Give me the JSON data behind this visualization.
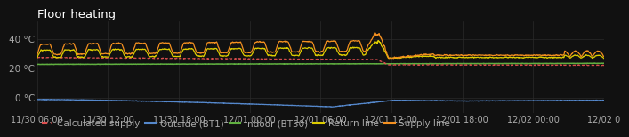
{
  "title": "Floor heating",
  "background_color": "#111111",
  "text_color": "#aaaaaa",
  "grid_color": "#2a2a2a",
  "ylim": [
    -10,
    52
  ],
  "yticks": [
    0,
    20,
    40
  ],
  "ytick_labels": [
    "0 °C",
    "20 °C",
    "40 °C"
  ],
  "x_tick_labels": [
    "11/30 06:00",
    "11/30 12:00",
    "11/30 18:00",
    "12/01 00:00",
    "12/01 06:00",
    "12/01 12:00",
    "12/01 18:00",
    "12/02 00:00",
    "12/02 0"
  ],
  "colors": {
    "calc_supply": "#e05050",
    "outside": "#5588cc",
    "indoor": "#60b040",
    "return_line": "#ddcc00",
    "supply_line": "#f49020"
  }
}
